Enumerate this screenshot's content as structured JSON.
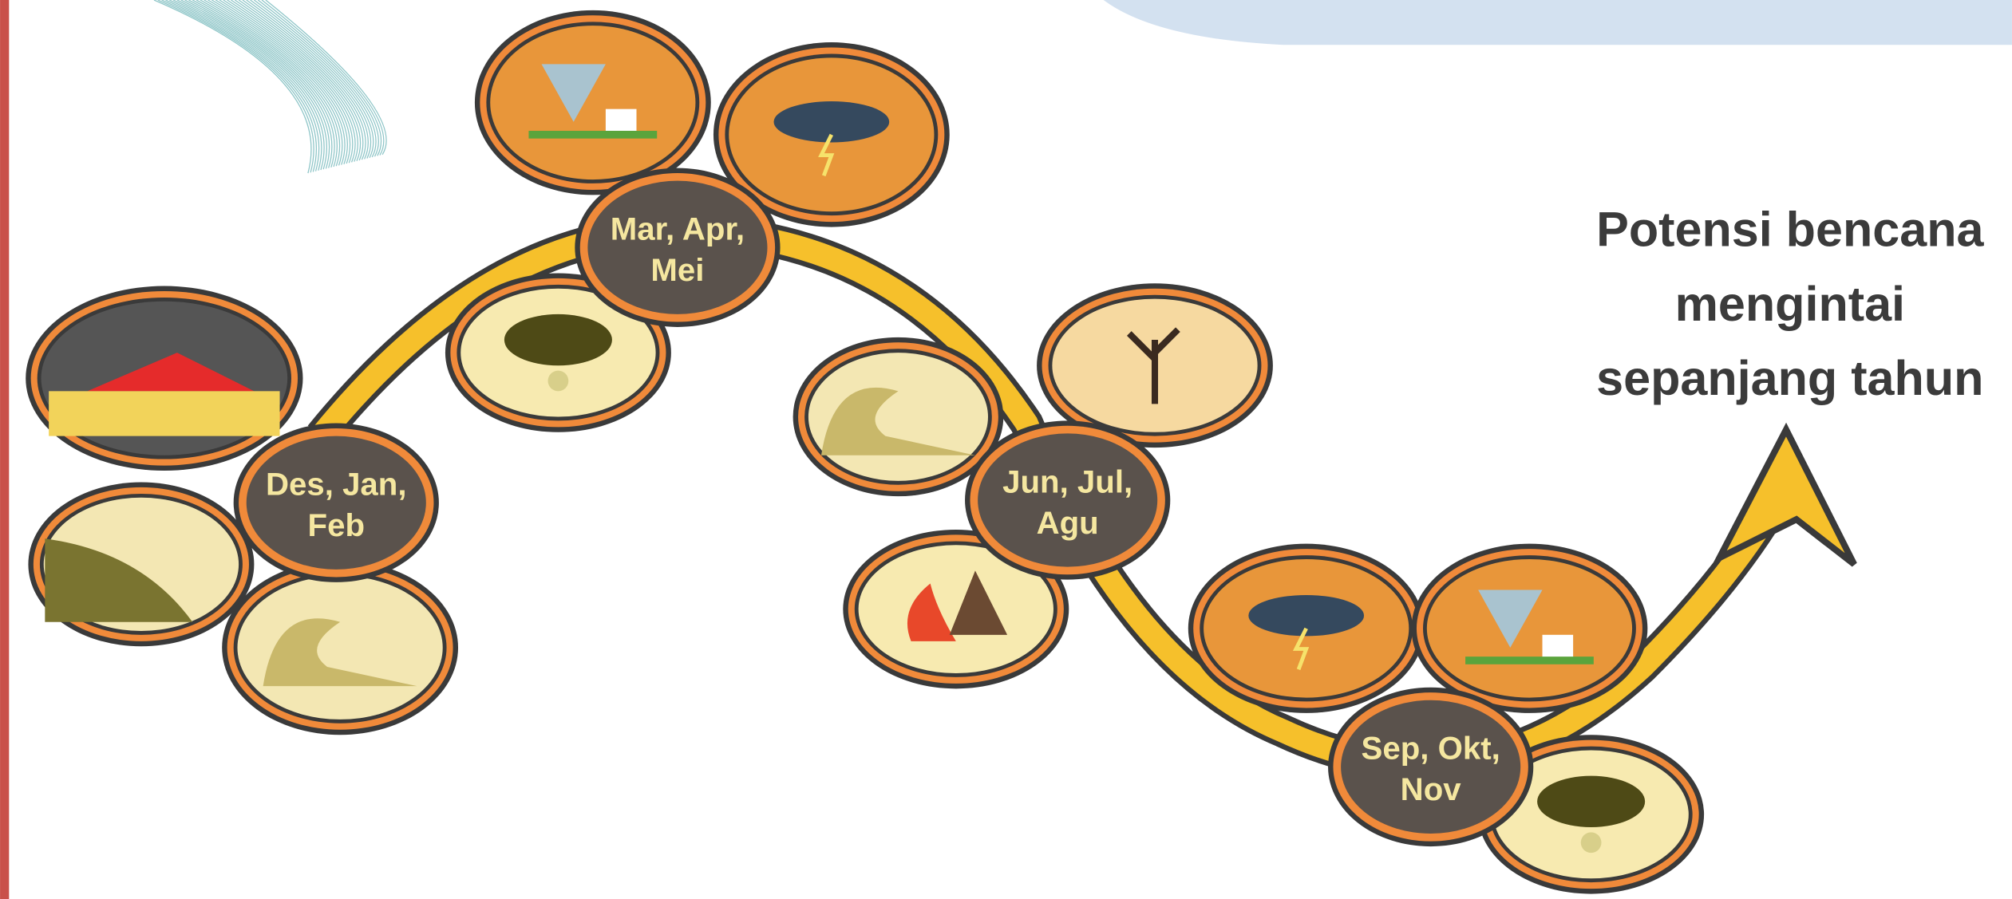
{
  "nodes": [
    {
      "lines": [
        "Des, Jan,",
        "Feb"
      ]
    },
    {
      "lines": [
        "Mar, Apr,",
        "Mei"
      ]
    },
    {
      "lines": [
        "Jun, Jul,",
        "Agu"
      ]
    },
    {
      "lines": [
        "Sep, Okt,",
        "Nov"
      ]
    }
  ],
  "caption": {
    "lines": [
      "Potensi bencana",
      "mengintai",
      "sepanjang tahun"
    ]
  }
}
